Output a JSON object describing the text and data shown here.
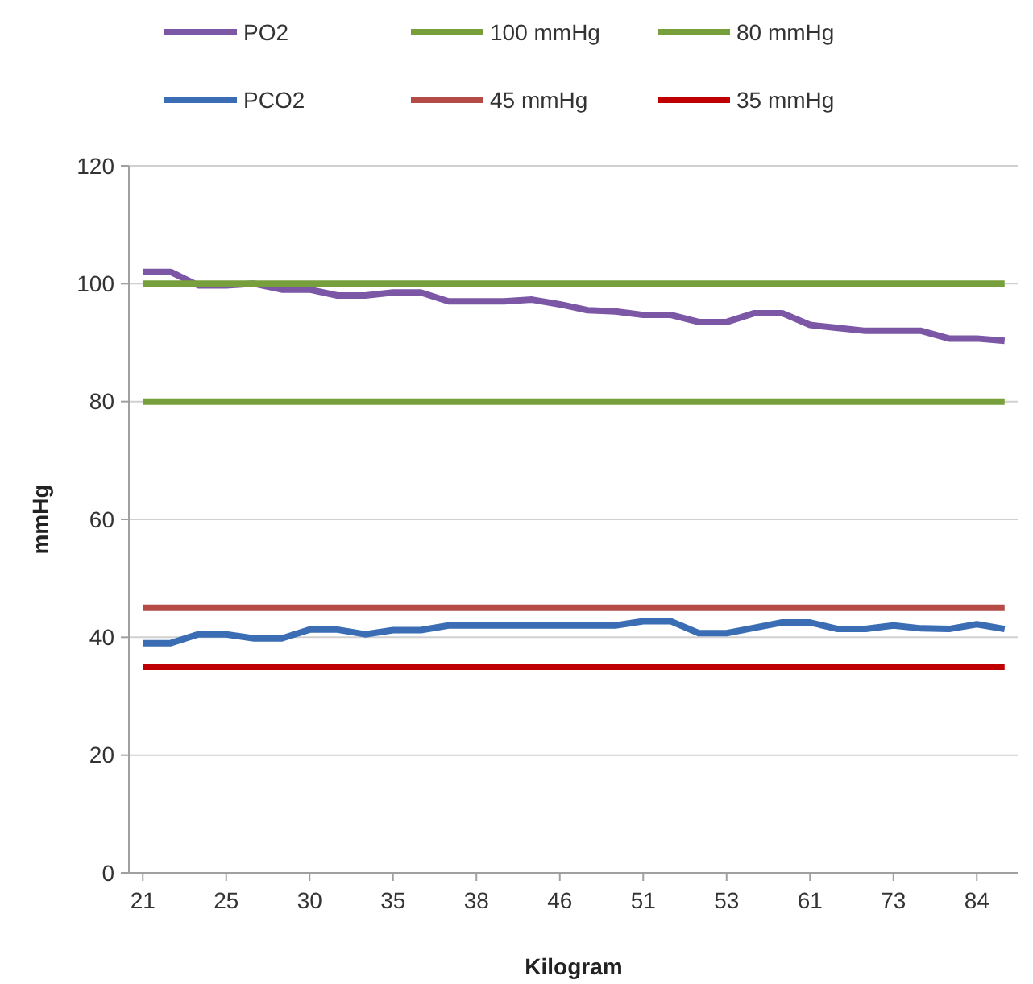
{
  "chart_data": {
    "type": "line",
    "xlabel": "Kilogram",
    "ylabel": "mmHg",
    "categories": [
      "21",
      null,
      null,
      "25",
      null,
      null,
      "30",
      null,
      null,
      "35",
      null,
      null,
      "38",
      null,
      null,
      "46",
      null,
      null,
      "51",
      null,
      null,
      "53",
      null,
      null,
      "61",
      null,
      null,
      "73",
      null,
      null,
      "84",
      null
    ],
    "series": [
      {
        "name": "PO2",
        "color": "#7b57a6",
        "values": [
          102,
          102,
          99.7,
          99.7,
          100,
          99,
          99,
          98,
          98,
          98.5,
          98.5,
          97,
          97,
          97,
          97.3,
          96.5,
          95.5,
          95.3,
          94.7,
          94.7,
          93.5,
          93.5,
          95,
          95,
          93,
          92.5,
          92,
          92,
          92,
          90.7,
          90.7,
          90.3
        ]
      },
      {
        "name": "100 mmHg",
        "color": "#77a03c",
        "values": [
          100,
          100,
          100,
          100,
          100,
          100,
          100,
          100,
          100,
          100,
          100,
          100,
          100,
          100,
          100,
          100,
          100,
          100,
          100,
          100,
          100,
          100,
          100,
          100,
          100,
          100,
          100,
          100,
          100,
          100,
          100,
          100
        ]
      },
      {
        "name": "80 mmHg",
        "color": "#77a03c",
        "values": [
          80,
          80,
          80,
          80,
          80,
          80,
          80,
          80,
          80,
          80,
          80,
          80,
          80,
          80,
          80,
          80,
          80,
          80,
          80,
          80,
          80,
          80,
          80,
          80,
          80,
          80,
          80,
          80,
          80,
          80,
          80,
          80
        ]
      },
      {
        "name": "PCO2",
        "color": "#3a6db3",
        "values": [
          39,
          39,
          40.5,
          40.5,
          39.8,
          39.8,
          41.3,
          41.3,
          40.5,
          41.2,
          41.2,
          42,
          42,
          42,
          42,
          42,
          42,
          42,
          42.7,
          42.7,
          40.7,
          40.7,
          41.6,
          42.5,
          42.5,
          41.4,
          41.4,
          42,
          41.5,
          41.4,
          42.2,
          41.4
        ]
      },
      {
        "name": "45 mmHg",
        "color": "#b44b47",
        "values": [
          45,
          45,
          45,
          45,
          45,
          45,
          45,
          45,
          45,
          45,
          45,
          45,
          45,
          45,
          45,
          45,
          45,
          45,
          45,
          45,
          45,
          45,
          45,
          45,
          45,
          45,
          45,
          45,
          45,
          45,
          45,
          45
        ]
      },
      {
        "name": "35 mmHg",
        "color": "#c00000",
        "values": [
          35,
          35,
          35,
          35,
          35,
          35,
          35,
          35,
          35,
          35,
          35,
          35,
          35,
          35,
          35,
          35,
          35,
          35,
          35,
          35,
          35,
          35,
          35,
          35,
          35,
          35,
          35,
          35,
          35,
          35,
          35,
          35
        ]
      }
    ],
    "ylim": [
      0,
      120
    ],
    "yticks": [
      0,
      20,
      40,
      60,
      80,
      100,
      120
    ],
    "grid": "y",
    "legend": "top",
    "marker": "none",
    "line_style": "solid"
  }
}
